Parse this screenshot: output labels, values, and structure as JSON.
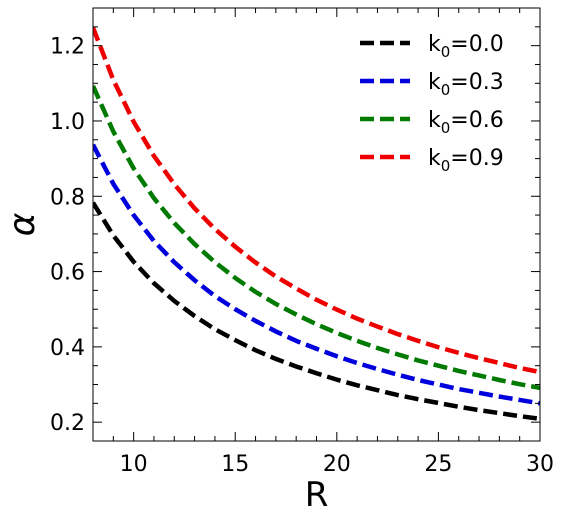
{
  "chart_data": {
    "type": "line",
    "xlabel": "R",
    "ylabel": "α",
    "xlim": [
      8,
      30
    ],
    "ylim": [
      0.15,
      1.3
    ],
    "xticks": [
      10,
      15,
      20,
      25,
      30
    ],
    "yticks": [
      0.2,
      0.4,
      0.6,
      0.8,
      1.0,
      1.2
    ],
    "grid": false,
    "legend_position": "top-right",
    "line_style": "dashed",
    "x": [
      8,
      9,
      10,
      11,
      12,
      13,
      14,
      15,
      16,
      17,
      18,
      19,
      20,
      21,
      22,
      23,
      24,
      25,
      26,
      27,
      28,
      29,
      30
    ],
    "series": [
      {
        "label_main": "k",
        "label_sub": "0",
        "label_rest": "=0.0",
        "color": "#000000",
        "values": [
          0.783,
          0.696,
          0.626,
          0.569,
          0.522,
          0.482,
          0.447,
          0.418,
          0.391,
          0.368,
          0.348,
          0.33,
          0.313,
          0.298,
          0.285,
          0.272,
          0.261,
          0.251,
          0.241,
          0.232,
          0.224,
          0.216,
          0.209
        ]
      },
      {
        "label_main": "k",
        "label_sub": "0",
        "label_rest": "=0.3",
        "color": "#0000dd",
        "values": [
          0.937,
          0.833,
          0.75,
          0.681,
          0.625,
          0.577,
          0.535,
          0.5,
          0.469,
          0.441,
          0.416,
          0.395,
          0.375,
          0.357,
          0.341,
          0.326,
          0.312,
          0.3,
          0.288,
          0.278,
          0.268,
          0.259,
          0.25
        ]
      },
      {
        "label_main": "k",
        "label_sub": "0",
        "label_rest": "=0.6",
        "color": "#007a00",
        "values": [
          1.093,
          0.972,
          0.874,
          0.795,
          0.729,
          0.673,
          0.625,
          0.583,
          0.546,
          0.514,
          0.486,
          0.46,
          0.437,
          0.416,
          0.397,
          0.38,
          0.364,
          0.35,
          0.336,
          0.324,
          0.312,
          0.301,
          0.291
        ]
      },
      {
        "label_main": "k",
        "label_sub": "0",
        "label_rest": "=0.9",
        "color": "#ee0000",
        "values": [
          1.248,
          1.109,
          0.998,
          0.907,
          0.832,
          0.768,
          0.713,
          0.666,
          0.624,
          0.587,
          0.555,
          0.525,
          0.499,
          0.475,
          0.454,
          0.434,
          0.416,
          0.399,
          0.384,
          0.37,
          0.357,
          0.344,
          0.333
        ]
      }
    ]
  }
}
